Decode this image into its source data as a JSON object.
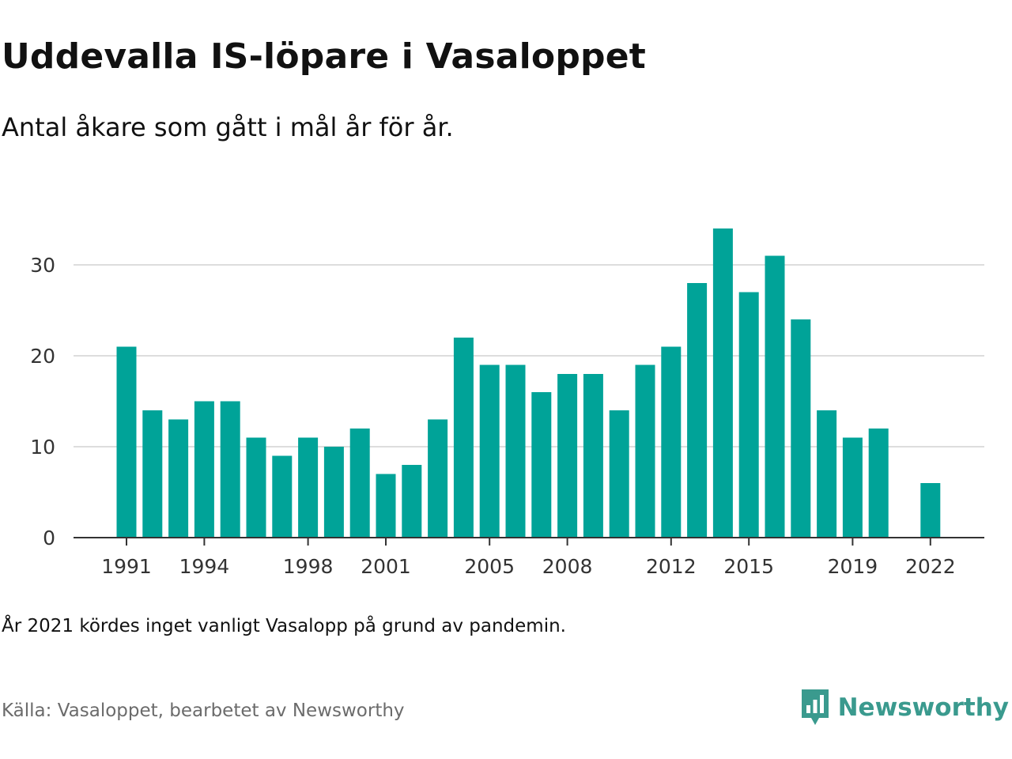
{
  "header": {
    "title": "Uddevalla IS-löpare i Vasaloppet",
    "subtitle": "Antal åkare som gått i mål år för år."
  },
  "footer": {
    "note": "År 2021 kördes inget vanligt Vasalopp på grund av pandemin.",
    "source": "Källa: Vasaloppet, bearbetet av Newsworthy",
    "brand": "Newsworthy",
    "brand_icon": "bar-chart-speech-bubble-icon"
  },
  "colors": {
    "bar": "#00a398",
    "brand": "#3a9a8e",
    "grid": "#dddddd",
    "axis": "#333333"
  },
  "chart_data": {
    "type": "bar",
    "categories": [
      1991,
      1992,
      1993,
      1994,
      1995,
      1996,
      1997,
      1998,
      1999,
      2000,
      2001,
      2002,
      2003,
      2004,
      2005,
      2006,
      2007,
      2008,
      2009,
      2010,
      2011,
      2012,
      2013,
      2014,
      2015,
      2016,
      2017,
      2018,
      2019,
      2020,
      2021,
      2022
    ],
    "values": [
      21,
      14,
      13,
      15,
      15,
      11,
      9,
      11,
      10,
      12,
      7,
      8,
      13,
      22,
      19,
      19,
      16,
      18,
      18,
      14,
      19,
      21,
      28,
      34,
      27,
      31,
      24,
      14,
      11,
      12,
      null,
      6
    ],
    "x_tick_labels": [
      "1991",
      "1994",
      "1998",
      "2001",
      "2005",
      "2008",
      "2012",
      "2015",
      "2019",
      "2022"
    ],
    "y_ticks": [
      0,
      10,
      20,
      30
    ],
    "ylim": [
      0,
      35
    ],
    "grid": true,
    "legend": "none",
    "xlabel": "",
    "ylabel": ""
  }
}
